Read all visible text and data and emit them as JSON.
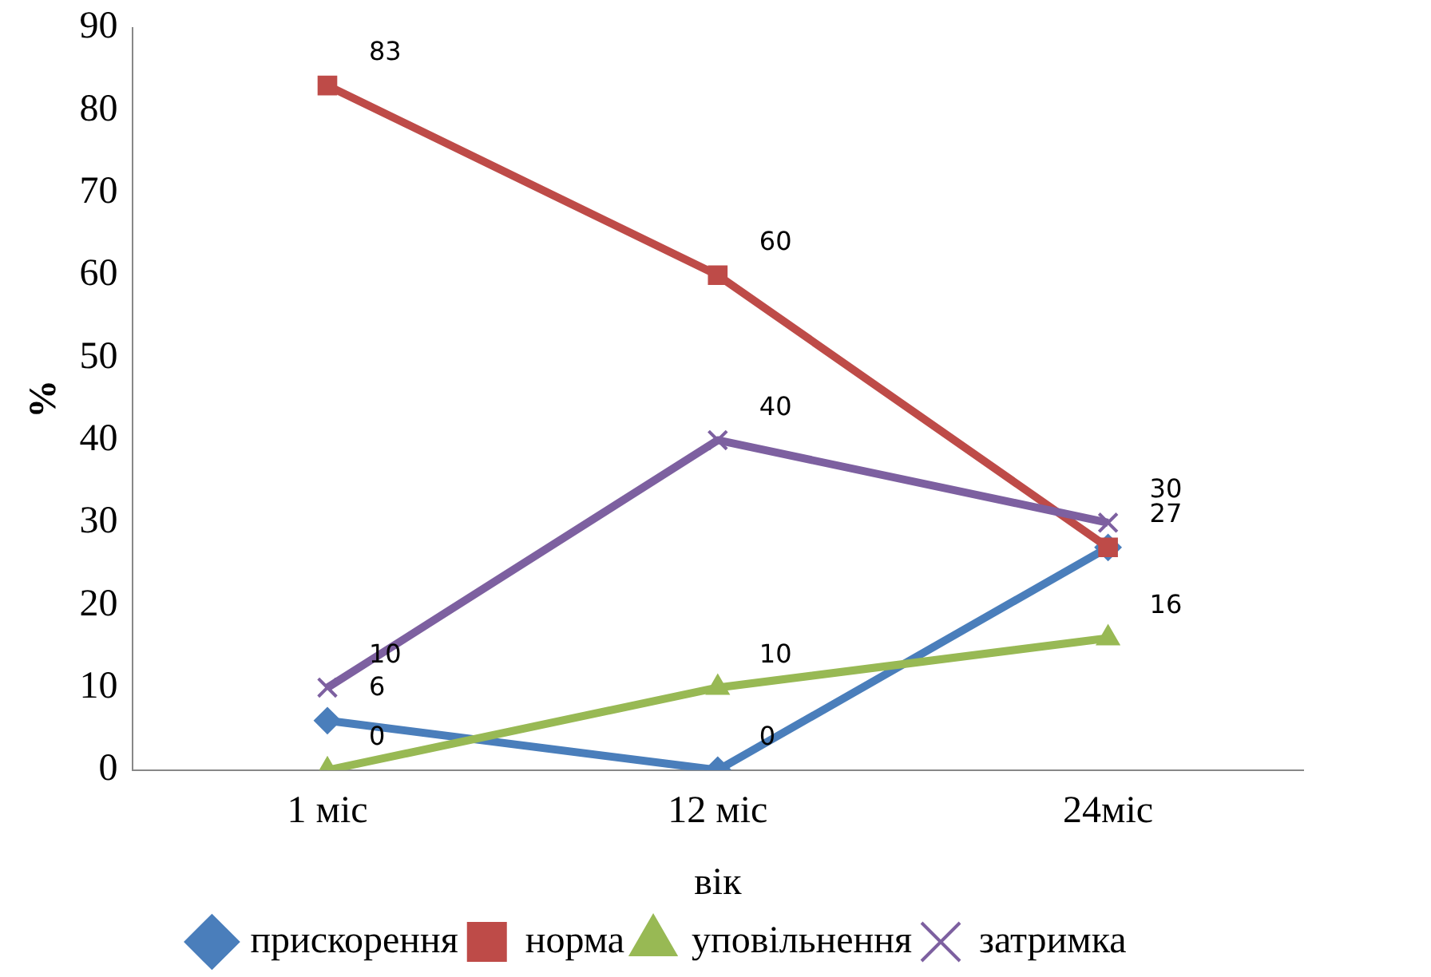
{
  "chart_data": {
    "type": "line",
    "xlabel": "вік",
    "ylabel": "%",
    "categories": [
      "1 міс",
      "12 міс",
      "24міс"
    ],
    "series": [
      {
        "name": "прискорення",
        "color": "#4a7ebb",
        "marker": "diamond",
        "values": [
          6,
          0,
          27
        ],
        "value_labels": [
          "6",
          "0",
          "27"
        ]
      },
      {
        "name": "норма",
        "color": "#be4b48",
        "marker": "square",
        "values": [
          83,
          60,
          27
        ],
        "value_labels": [
          "83",
          "60",
          null
        ]
      },
      {
        "name": "уповільнення",
        "color": "#98b954",
        "marker": "triangle",
        "values": [
          0,
          10,
          16
        ],
        "value_labels": [
          "0",
          "10",
          "16"
        ]
      },
      {
        "name": "затримка",
        "color": "#7d60a0",
        "marker": "cross",
        "values": [
          10,
          40,
          30
        ],
        "value_labels": [
          "10",
          "40",
          "30"
        ]
      }
    ],
    "ylim": [
      0,
      90
    ],
    "yticks": [
      0,
      10,
      20,
      30,
      40,
      50,
      60,
      70,
      80,
      90
    ],
    "grid": false,
    "legend": "bottom"
  }
}
